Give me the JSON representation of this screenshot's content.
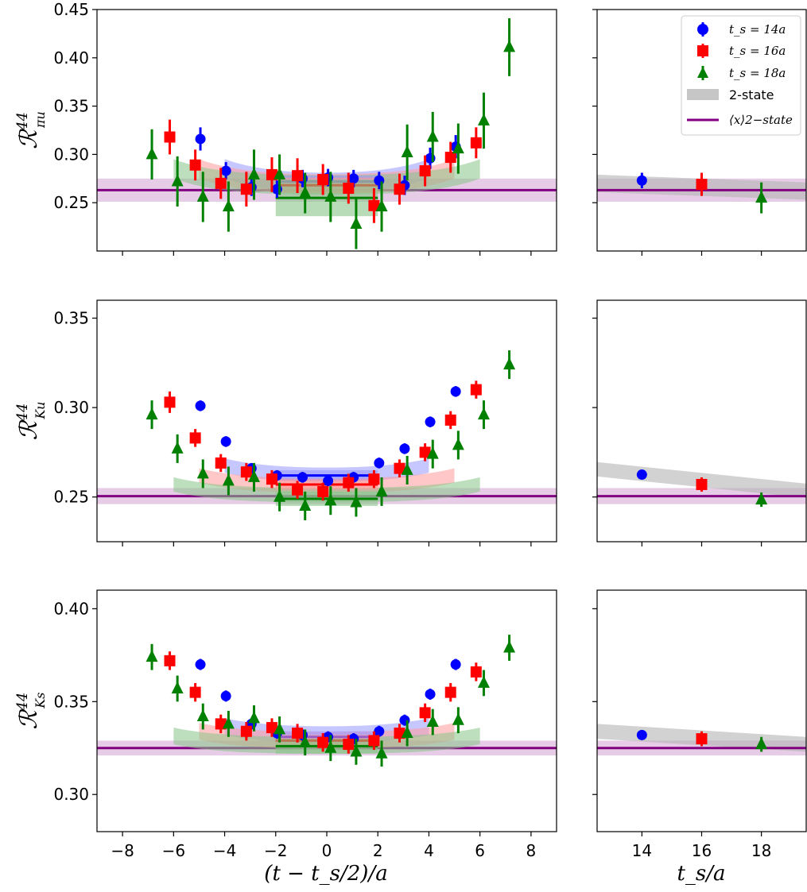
{
  "legend": [
    {
      "label": "t_s = 14a",
      "color": "#0000ff",
      "marker": "circle"
    },
    {
      "label": "t_s = 16a",
      "color": "#ff0000",
      "marker": "square"
    },
    {
      "label": "t_s = 18a",
      "color": "#008000",
      "marker": "triangle"
    },
    {
      "label": "2-state",
      "color": "#c0c0c0",
      "marker": "band"
    },
    {
      "label": "⟨x⟩2−state",
      "color": "#800080",
      "marker": "line"
    }
  ],
  "xlabel_left": "(t − t_s/2)/a",
  "xlabel_right": "t_s/a",
  "chart_data": [
    {
      "type": "scatter",
      "ylabel": "R^44_{π_u}",
      "xlim": [
        -9,
        9
      ],
      "ylim": [
        0.2,
        0.45
      ],
      "yticks": [
        0.25,
        0.3,
        0.35,
        0.4,
        0.45
      ],
      "xticks": [
        -8,
        -6,
        -4,
        -2,
        0,
        2,
        4,
        6,
        8
      ],
      "avg": {
        "value": 0.263,
        "err": 0.012
      },
      "series": [
        {
          "name": "t_s = 14a",
          "x": [
            -5,
            -4,
            -3,
            -2,
            -1,
            0,
            1,
            2,
            3,
            4,
            5
          ],
          "y": [
            0.316,
            0.283,
            0.266,
            0.264,
            0.275,
            0.276,
            0.275,
            0.273,
            0.268,
            0.296,
            0.308
          ],
          "err": [
            0.012,
            0.009,
            0.009,
            0.009,
            0.009,
            0.009,
            0.009,
            0.009,
            0.01,
            0.011,
            0.012
          ],
          "plateau": {
            "x": [
              -2,
              2
            ],
            "y": 0.272,
            "err": 0.006
          },
          "fit": {
            "x": [
              -4,
              4
            ],
            "y0": 0.267,
            "amp": 0.018,
            "err": 0.01
          }
        },
        {
          "name": "t_s = 16a",
          "x": [
            -6,
            -5,
            -4,
            -3,
            -2,
            -1,
            0,
            1,
            2,
            3,
            4,
            5,
            6
          ],
          "y": [
            0.318,
            0.289,
            0.27,
            0.264,
            0.279,
            0.278,
            0.274,
            0.265,
            0.247,
            0.264,
            0.283,
            0.297,
            0.312
          ],
          "err": [
            0.018,
            0.016,
            0.016,
            0.018,
            0.018,
            0.018,
            0.016,
            0.016,
            0.018,
            0.016,
            0.016,
            0.016,
            0.016
          ],
          "plateau": {
            "x": [
              -2,
              2
            ],
            "y": 0.268,
            "err": 0.008
          },
          "fit": {
            "x": [
              -5,
              5
            ],
            "y0": 0.267,
            "amp": 0.018,
            "err": 0.01
          }
        },
        {
          "name": "t_s = 18a",
          "x": [
            -7,
            -6,
            -5,
            -4,
            -3,
            -2,
            -1,
            0,
            1,
            2,
            3,
            4,
            5,
            6,
            7
          ],
          "y": [
            0.3,
            0.272,
            0.256,
            0.246,
            0.279,
            0.279,
            0.26,
            0.256,
            0.228,
            0.246,
            0.302,
            0.318,
            0.306,
            0.335,
            0.411
          ],
          "err": [
            0.026,
            0.026,
            0.026,
            0.026,
            0.026,
            0.021,
            0.021,
            0.026,
            0.026,
            0.026,
            0.029,
            0.026,
            0.026,
            0.029,
            0.03
          ],
          "plateau": {
            "x": [
              -2,
              2
            ],
            "y": 0.255,
            "err": 0.019
          },
          "fit": {
            "x": [
              -6,
              6
            ],
            "y0": 0.267,
            "amp": 0.018,
            "err": 0.01
          }
        }
      ],
      "right": {
        "xlim": [
          12.5,
          19.5
        ],
        "xticks": [
          14,
          16,
          18
        ],
        "x": [
          14,
          16,
          18
        ],
        "y": [
          0.273,
          0.269,
          0.255
        ],
        "err": [
          0.008,
          0.012,
          0.016
        ],
        "band": {
          "y": [
            0.27,
            0.262
          ],
          "err": 0.009
        }
      }
    },
    {
      "type": "scatter",
      "ylabel": "R^44_{K_u}",
      "xlim": [
        -9,
        9
      ],
      "ylim": [
        0.225,
        0.36
      ],
      "yticks": [
        0.25,
        0.3,
        0.35
      ],
      "xticks": [
        -8,
        -6,
        -4,
        -2,
        0,
        2,
        4,
        6,
        8
      ],
      "avg": {
        "value": 0.2505,
        "err": 0.0045
      },
      "series": [
        {
          "name": "t_s = 14a",
          "x": [
            -5,
            -4,
            -3,
            -2,
            -1,
            0,
            1,
            2,
            3,
            4,
            5
          ],
          "y": [
            0.301,
            0.281,
            0.266,
            0.262,
            0.261,
            0.259,
            0.261,
            0.269,
            0.277,
            0.292,
            0.309
          ],
          "err": [
            0.003,
            0.003,
            0.003,
            0.003,
            0.003,
            0.003,
            0.003,
            0.003,
            0.003,
            0.003,
            0.003
          ],
          "plateau": {
            "x": [
              -2,
              2
            ],
            "y": 0.262,
            "err": 0.003
          },
          "fit": {
            "x": [
              -4,
              4
            ],
            "y0": 0.261,
            "amp": 0.0065,
            "err": 0.004
          }
        },
        {
          "name": "t_s = 16a",
          "x": [
            -6,
            -5,
            -4,
            -3,
            -2,
            -1,
            0,
            1,
            2,
            3,
            4,
            5,
            6
          ],
          "y": [
            0.303,
            0.283,
            0.269,
            0.264,
            0.26,
            0.254,
            0.253,
            0.258,
            0.26,
            0.266,
            0.275,
            0.293,
            0.31
          ],
          "err": [
            0.006,
            0.005,
            0.005,
            0.005,
            0.005,
            0.005,
            0.005,
            0.005,
            0.005,
            0.005,
            0.005,
            0.005,
            0.005
          ],
          "plateau": {
            "x": [
              -2,
              2
            ],
            "y": 0.257,
            "err": 0.003
          },
          "fit": {
            "x": [
              -5,
              5
            ],
            "y0": 0.2555,
            "amp": 0.0065,
            "err": 0.004
          }
        },
        {
          "name": "t_s = 18a",
          "x": [
            -7,
            -6,
            -5,
            -4,
            -3,
            -2,
            -1,
            0,
            1,
            2,
            3,
            4,
            5,
            6,
            7
          ],
          "y": [
            0.296,
            0.277,
            0.263,
            0.259,
            0.261,
            0.25,
            0.245,
            0.248,
            0.247,
            0.253,
            0.265,
            0.274,
            0.279,
            0.296,
            0.324
          ],
          "err": [
            0.008,
            0.008,
            0.008,
            0.008,
            0.008,
            0.008,
            0.008,
            0.008,
            0.008,
            0.008,
            0.008,
            0.008,
            0.008,
            0.008,
            0.008
          ],
          "plateau": {
            "x": [
              -2,
              2
            ],
            "y": 0.249,
            "err": 0.004
          },
          "fit": {
            "x": [
              -6,
              6
            ],
            "y0": 0.2505,
            "amp": 0.0065,
            "err": 0.004
          }
        }
      ],
      "right": {
        "xlim": [
          12.5,
          19.5
        ],
        "xticks": [
          14,
          16,
          18
        ],
        "x": [
          14,
          16,
          18
        ],
        "y": [
          0.2625,
          0.257,
          0.2485
        ],
        "err": [
          0.002,
          0.004,
          0.004
        ],
        "band": {
          "y": [
            0.2655,
            0.2535
          ],
          "err": 0.004
        }
      }
    },
    {
      "type": "scatter",
      "ylabel": "R^44_{K_s}",
      "xlim": [
        -9,
        9
      ],
      "ylim": [
        0.28,
        0.41
      ],
      "yticks": [
        0.3,
        0.35,
        0.4
      ],
      "xticks": [
        -8,
        -6,
        -4,
        -2,
        0,
        2,
        4,
        6,
        8
      ],
      "avg": {
        "value": 0.325,
        "err": 0.004
      },
      "series": [
        {
          "name": "t_s = 14a",
          "x": [
            -5,
            -4,
            -3,
            -2,
            -1,
            0,
            1,
            2,
            3,
            4,
            5
          ],
          "y": [
            0.37,
            0.353,
            0.338,
            0.333,
            0.332,
            0.331,
            0.33,
            0.334,
            0.34,
            0.354,
            0.37
          ],
          "err": [
            0.003,
            0.003,
            0.003,
            0.003,
            0.003,
            0.003,
            0.003,
            0.003,
            0.003,
            0.003,
            0.003
          ],
          "plateau": {
            "x": [
              -2,
              2
            ],
            "y": 0.331,
            "err": 0.003
          },
          "fit": {
            "x": [
              -4,
              4
            ],
            "y0": 0.331,
            "amp": 0.0055,
            "err": 0.0045
          }
        },
        {
          "name": "t_s = 16a",
          "x": [
            -6,
            -5,
            -4,
            -3,
            -2,
            -1,
            0,
            1,
            2,
            3,
            4,
            5,
            6
          ],
          "y": [
            0.372,
            0.355,
            0.338,
            0.334,
            0.336,
            0.333,
            0.328,
            0.327,
            0.329,
            0.333,
            0.344,
            0.355,
            0.366
          ],
          "err": [
            0.005,
            0.005,
            0.005,
            0.005,
            0.005,
            0.005,
            0.005,
            0.005,
            0.005,
            0.005,
            0.005,
            0.005,
            0.005
          ],
          "plateau": {
            "x": [
              -2,
              2
            ],
            "y": 0.329,
            "err": 0.003
          },
          "fit": {
            "x": [
              -5,
              5
            ],
            "y0": 0.3285,
            "amp": 0.0055,
            "err": 0.0045
          }
        },
        {
          "name": "t_s = 18a",
          "x": [
            -7,
            -6,
            -5,
            -4,
            -3,
            -2,
            -1,
            0,
            1,
            2,
            3,
            4,
            5,
            6,
            7
          ],
          "y": [
            0.374,
            0.357,
            0.342,
            0.338,
            0.341,
            0.335,
            0.328,
            0.325,
            0.323,
            0.322,
            0.333,
            0.339,
            0.34,
            0.36,
            0.379
          ],
          "err": [
            0.007,
            0.007,
            0.007,
            0.007,
            0.007,
            0.007,
            0.007,
            0.007,
            0.007,
            0.007,
            0.007,
            0.007,
            0.007,
            0.007,
            0.007
          ],
          "plateau": {
            "x": [
              -2,
              2
            ],
            "y": 0.326,
            "err": 0.004
          },
          "fit": {
            "x": [
              -6,
              6
            ],
            "y0": 0.326,
            "amp": 0.0055,
            "err": 0.0045
          }
        }
      ],
      "right": {
        "xlim": [
          12.5,
          19.5
        ],
        "xticks": [
          14,
          16,
          18
        ],
        "x": [
          14,
          16,
          18
        ],
        "y": [
          0.332,
          0.33,
          0.327
        ],
        "err": [
          0.002,
          0.004,
          0.004
        ],
        "band": {
          "y": [
            0.334,
            0.327
          ],
          "err": 0.004
        }
      }
    }
  ]
}
